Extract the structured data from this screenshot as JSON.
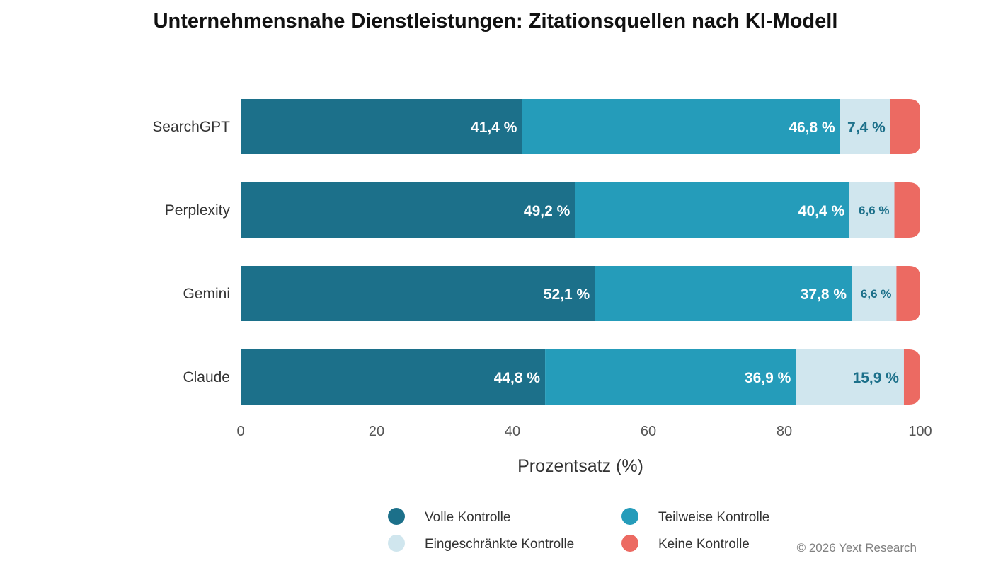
{
  "chart_data": {
    "type": "bar",
    "orientation": "horizontal",
    "stacked": true,
    "title": "Unternehmensnahe Dienstleistungen: Zitationsquellen nach KI-Modell",
    "xlabel": "Prozentsatz (%)",
    "ylabel": "",
    "xlim": [
      0,
      100
    ],
    "x_ticks": [
      "0",
      "20",
      "40",
      "60",
      "80",
      "100"
    ],
    "categories": [
      "SearchGPT",
      "Perplexity",
      "Gemini",
      "Claude"
    ],
    "series": [
      {
        "name": "Volle Kontrolle",
        "color": "#1c708a",
        "label_color": "#ffffff",
        "values": [
          41.4,
          49.2,
          52.1,
          44.8
        ],
        "labels": [
          "41,4 %",
          "49,2 %",
          "52,1 %",
          "44,8 %"
        ]
      },
      {
        "name": "Teilweise Kontrolle",
        "color": "#259cba",
        "label_color": "#ffffff",
        "values": [
          46.8,
          40.4,
          37.8,
          36.9
        ],
        "labels": [
          "46,8 %",
          "40,4 %",
          "37,8 %",
          "36,9 %"
        ]
      },
      {
        "name": "Eingeschränkte Kontrolle",
        "color": "#d0e6ee",
        "label_color": "#1c708a",
        "values": [
          7.4,
          6.6,
          6.6,
          15.9
        ],
        "labels": [
          "7,4 %",
          "6,6 %",
          "6,6 %",
          "15,9 %"
        ]
      },
      {
        "name": "Keine Kontrolle",
        "color": "#ec6a62",
        "label_color": "#ffffff",
        "values": [
          4.4,
          3.8,
          3.5,
          2.4
        ],
        "labels": [
          "",
          "",
          "",
          ""
        ]
      }
    ],
    "legend_position": "bottom",
    "grid": false
  },
  "footer": {
    "copyright": "© 2026 Yext Research"
  }
}
